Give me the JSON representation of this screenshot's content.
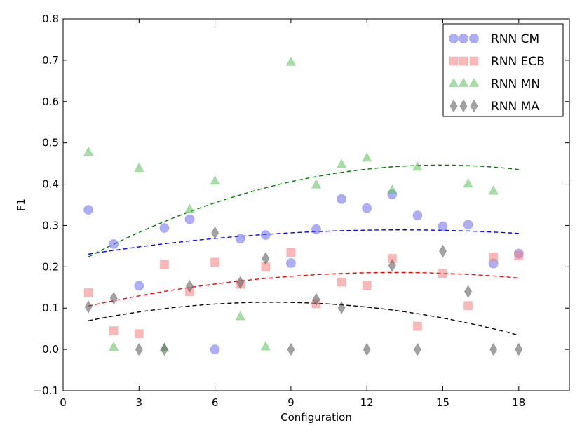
{
  "chart_data": {
    "type": "scatter",
    "title": "",
    "xlabel": "Configuration",
    "ylabel": "F1",
    "xlim": [
      0,
      20
    ],
    "ylim": [
      -0.1,
      0.8
    ],
    "xticks": [
      0,
      3,
      6,
      9,
      12,
      15,
      18
    ],
    "xtick_labels": [
      "0",
      "3",
      "6",
      "9",
      "12",
      "15",
      "18"
    ],
    "yticks": [
      -0.1,
      0.0,
      0.1,
      0.2,
      0.3,
      0.4,
      0.5,
      0.6,
      0.7,
      0.8
    ],
    "ytick_labels": [
      "−0.1",
      "0.0",
      "0.1",
      "0.2",
      "0.3",
      "0.4",
      "0.5",
      "0.6",
      "0.7",
      "0.8"
    ],
    "grid": false,
    "legend_position": "top-right",
    "series": [
      {
        "name": "RNN CM",
        "marker": "circle",
        "color": "#6b6bee",
        "trend_color": "#0000ff",
        "points": [
          [
            1,
            0.338
          ],
          [
            2,
            0.255
          ],
          [
            3,
            0.154
          ],
          [
            4,
            0.294
          ],
          [
            5,
            0.315
          ],
          [
            6,
            0.0
          ],
          [
            7,
            0.268
          ],
          [
            8,
            0.277
          ],
          [
            9,
            0.209
          ],
          [
            10,
            0.291
          ],
          [
            11,
            0.364
          ],
          [
            12,
            0.342
          ],
          [
            13,
            0.375
          ],
          [
            14,
            0.324
          ],
          [
            15,
            0.298
          ],
          [
            16,
            0.302
          ],
          [
            17,
            0.208
          ],
          [
            18,
            0.232
          ]
        ],
        "trend": [
          0.2306,
          0.2837,
          0.2808
        ]
      },
      {
        "name": "RNN ECB",
        "marker": "square",
        "color": "#f48080",
        "trend_color": "#ff0000",
        "points": [
          [
            1,
            0.137
          ],
          [
            2,
            0.045
          ],
          [
            3,
            0.038
          ],
          [
            4,
            0.206
          ],
          [
            5,
            0.14
          ],
          [
            6,
            0.211
          ],
          [
            7,
            0.158
          ],
          [
            8,
            0.2
          ],
          [
            9,
            0.235
          ],
          [
            10,
            0.111
          ],
          [
            11,
            0.163
          ],
          [
            12,
            0.155
          ],
          [
            13,
            0.22
          ],
          [
            14,
            0.056
          ],
          [
            15,
            0.184
          ],
          [
            16,
            0.106
          ],
          [
            17,
            0.224
          ],
          [
            18,
            0.227
          ]
        ],
        "trend": [
          0.105,
          0.1791,
          0.1729
        ]
      },
      {
        "name": "RNN MN",
        "marker": "triangle",
        "color": "#5fbf5f",
        "trend_color": "#008000",
        "points": [
          [
            1,
            0.477
          ],
          [
            2,
            0.005
          ],
          [
            3,
            0.438
          ],
          [
            4,
            0.003
          ],
          [
            5,
            0.339
          ],
          [
            6,
            0.407
          ],
          [
            7,
            0.079
          ],
          [
            8,
            0.006
          ],
          [
            9,
            0.695
          ],
          [
            10,
            0.398
          ],
          [
            11,
            0.447
          ],
          [
            12,
            0.463
          ],
          [
            13,
            0.385
          ],
          [
            14,
            0.441
          ],
          [
            16,
            0.4
          ],
          [
            17,
            0.383
          ]
        ],
        "trend": [
          0.224,
          0.4124,
          0.4354
        ]
      },
      {
        "name": "RNN MA",
        "marker": "diamond",
        "color": "#555555",
        "trend_color": "#000000",
        "points": [
          [
            1,
            0.103
          ],
          [
            2,
            0.124
          ],
          [
            3,
            0.0
          ],
          [
            4,
            0.0
          ],
          [
            5,
            0.153
          ],
          [
            6,
            0.282
          ],
          [
            7,
            0.162
          ],
          [
            8,
            0.22
          ],
          [
            9,
            0.0
          ],
          [
            10,
            0.121
          ],
          [
            11,
            0.101
          ],
          [
            12,
            0.0
          ],
          [
            13,
            0.203
          ],
          [
            14,
            0.0
          ],
          [
            15,
            0.238
          ],
          [
            16,
            0.14
          ],
          [
            17,
            0.0
          ],
          [
            18,
            0.0
          ]
        ],
        "trend": [
          0.0695,
          0.1129,
          0.0343
        ]
      }
    ]
  }
}
